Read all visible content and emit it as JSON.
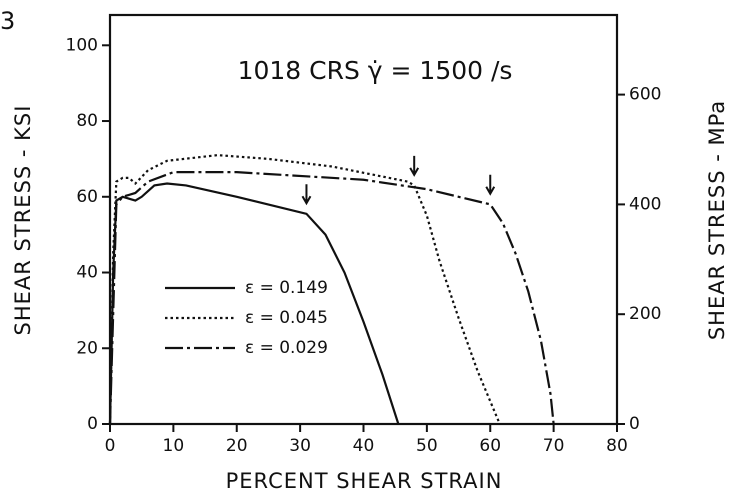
{
  "chart_data": {
    "type": "line",
    "figure_label": "3",
    "title": "1018 CRS  γ̇ = 1500 /s",
    "xlabel": "PERCENT SHEAR STRAIN",
    "ylabel": "SHEAR STRESS - KSI",
    "y2label": "SHEAR STRESS - MPa",
    "xlim": [
      0,
      80
    ],
    "xticks": [
      0,
      10,
      20,
      30,
      40,
      50,
      60,
      70,
      80
    ],
    "ylim": [
      0,
      108
    ],
    "yticks": [
      0,
      20,
      40,
      60,
      80,
      100
    ],
    "y2lim": [
      0,
      745
    ],
    "y2ticks": [
      0,
      200,
      400,
      600
    ],
    "series": [
      {
        "name": "ε = 0.149",
        "color": "#111111",
        "style": "solid",
        "x": [
          0,
          0.5,
          1,
          2,
          3,
          4,
          5,
          7,
          9,
          12,
          20,
          31,
          34,
          37,
          40,
          43,
          45.5
        ],
        "values": [
          0,
          40,
          59,
          60,
          59.5,
          59,
          60,
          63,
          63.5,
          63,
          60,
          55.5,
          50,
          40,
          27,
          13,
          0
        ]
      },
      {
        "name": "ε = 0.045",
        "color": "#111111",
        "style": "dotted",
        "x": [
          0,
          0.5,
          1,
          2,
          3,
          4,
          6,
          9,
          17,
          25,
          35,
          47,
          48,
          50,
          52,
          55,
          58,
          61.5
        ],
        "values": [
          0,
          45,
          64,
          65,
          65,
          63.5,
          67,
          69.5,
          71,
          70,
          68,
          64,
          63,
          55,
          43,
          28,
          14,
          0
        ]
      },
      {
        "name": "ε = 0.029",
        "color": "#111111",
        "style": "dashdot",
        "x": [
          0,
          1,
          2,
          4,
          6,
          10,
          20,
          40,
          50,
          60,
          62,
          64,
          66,
          68,
          69.5,
          70
        ],
        "values": [
          0,
          58,
          60,
          61,
          64,
          66.5,
          66.5,
          64.5,
          62,
          58,
          53,
          45,
          35,
          22,
          8,
          0
        ]
      }
    ],
    "arrows": [
      {
        "x": 31,
        "y": 57.5
      },
      {
        "x": 48,
        "y": 65
      },
      {
        "x": 60,
        "y": 60
      }
    ]
  }
}
